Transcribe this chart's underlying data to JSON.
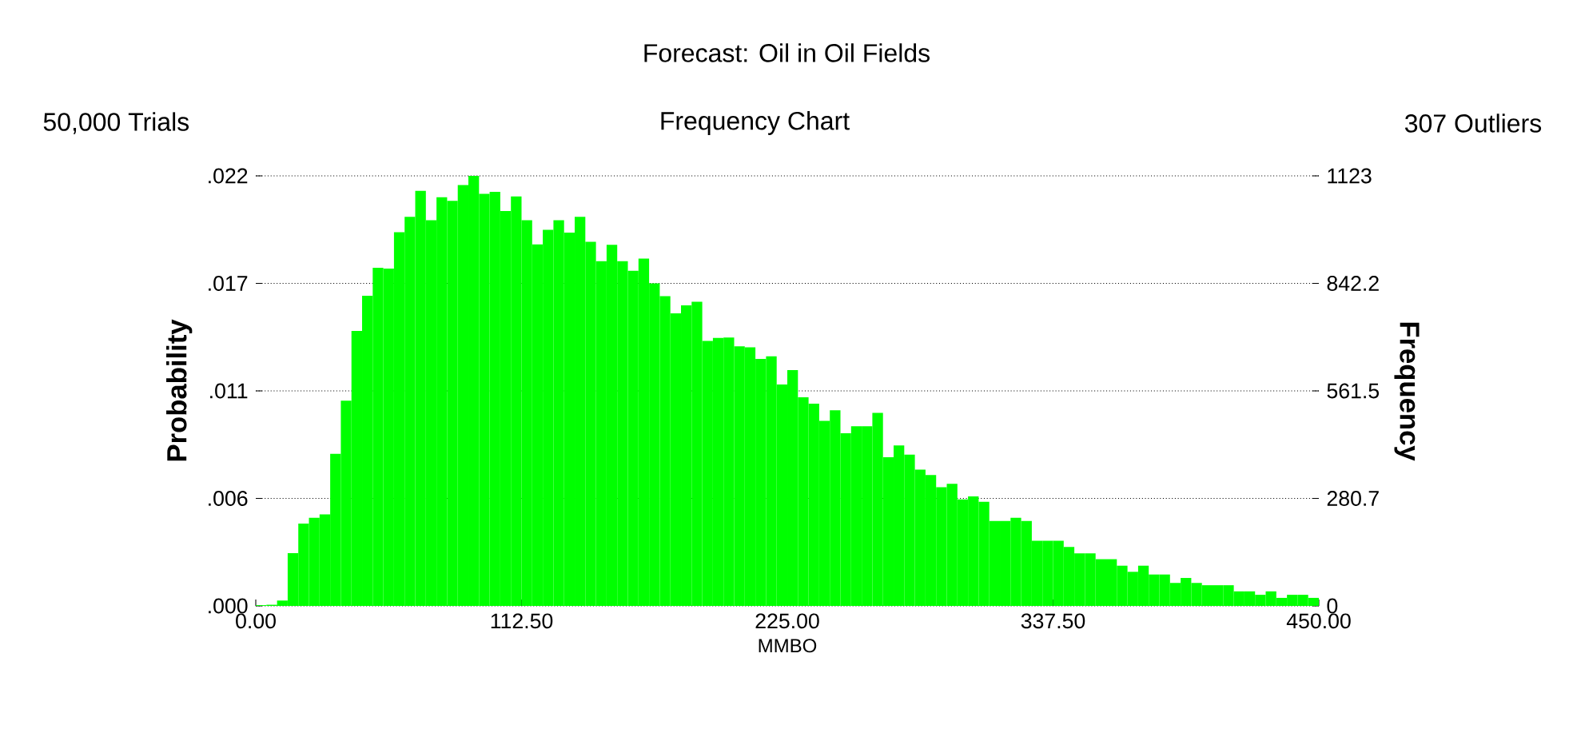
{
  "chart_data": {
    "type": "histogram",
    "title": "Forecast: Oil in Oil Fields",
    "subtitle": "Frequency Chart",
    "annotations": [
      "50,000 Trials",
      "307 Outliers"
    ],
    "xlabel": "MMBO",
    "ylabel": "Probability",
    "y2label": "Frequency",
    "bins": [
      0,
      4.5,
      9,
      13.5,
      18,
      22.5,
      27,
      31.5,
      36,
      40.5,
      45,
      49.5,
      54,
      58.5,
      63,
      67.5,
      72,
      76.5,
      81,
      85.5,
      90,
      94.5,
      99,
      103.5,
      108,
      112.5,
      117,
      121.5,
      126,
      130.5,
      135,
      139.5,
      144,
      148.5,
      153,
      157.5,
      162,
      166.5,
      171,
      175.5,
      180,
      184.5,
      189,
      193.5,
      198,
      202.5,
      207,
      211.5,
      216,
      220.5,
      225,
      229.5,
      234,
      238.5,
      243,
      247.5,
      252,
      256.5,
      261,
      265.5,
      270,
      274.5,
      279,
      283.5,
      288,
      292.5,
      297,
      301.5,
      306,
      310.5,
      315,
      319.5,
      324,
      328.5,
      333,
      337.5,
      342,
      346.5,
      351,
      355.5,
      360,
      364.5,
      369,
      373.5,
      378,
      382.5,
      387,
      391.5,
      396,
      400.5,
      405,
      409.5,
      414,
      418.5,
      423,
      427.5,
      432,
      436.5,
      441,
      445.5,
      450
    ],
    "series": [
      {
        "color": "#00ff00",
        "axis": "y2",
        "values": [
          2,
          3,
          14,
          138,
          215,
          230,
          239,
          397,
          536,
          718,
          810,
          883,
          881,
          976,
          1016,
          1084,
          1007,
          1067,
          1058,
          1099,
          1123,
          1076,
          1081,
          1031,
          1069,
          1007,
          944,
          982,
          1007,
          975,
          1016,
          951,
          900,
          943,
          900,
          875,
          907,
          842,
          809,
          764,
          785,
          794,
          692,
          700,
          701,
          678,
          675,
          645,
          652,
          578,
          616,
          545,
          528,
          483,
          511,
          451,
          469,
          469,
          504,
          388,
          419,
          395,
          356,
          342,
          310,
          319,
          278,
          286,
          272,
          222,
          222,
          230,
          222,
          170,
          170,
          170,
          154,
          137,
          137,
          122,
          122,
          105,
          89,
          105,
          82,
          82,
          60,
          73,
          60,
          54,
          54,
          54,
          38,
          38,
          29,
          38,
          21,
          29,
          29,
          21
        ]
      }
    ],
    "xlim": [
      0,
      450
    ],
    "xticks": [
      {
        "value": 0,
        "label": "0.00"
      },
      {
        "value": 112.5,
        "label": "112.50"
      },
      {
        "value": 225,
        "label": "225.00"
      },
      {
        "value": 337.5,
        "label": "337.50"
      },
      {
        "value": 450,
        "label": "450.00"
      }
    ],
    "ylim": [
      0,
      0.02246
    ],
    "yticks": [
      {
        "value": 0,
        "label": ".000"
      },
      {
        "value": 0.005615,
        "label": ".006"
      },
      {
        "value": 0.01123,
        "label": ".011"
      },
      {
        "value": 0.016845,
        "label": ".017"
      },
      {
        "value": 0.02246,
        "label": ".022"
      }
    ],
    "y2lim": [
      0,
      1123
    ],
    "y2ticks": [
      0,
      280.7,
      561.5,
      842.2,
      1123
    ],
    "grid": "y"
  }
}
